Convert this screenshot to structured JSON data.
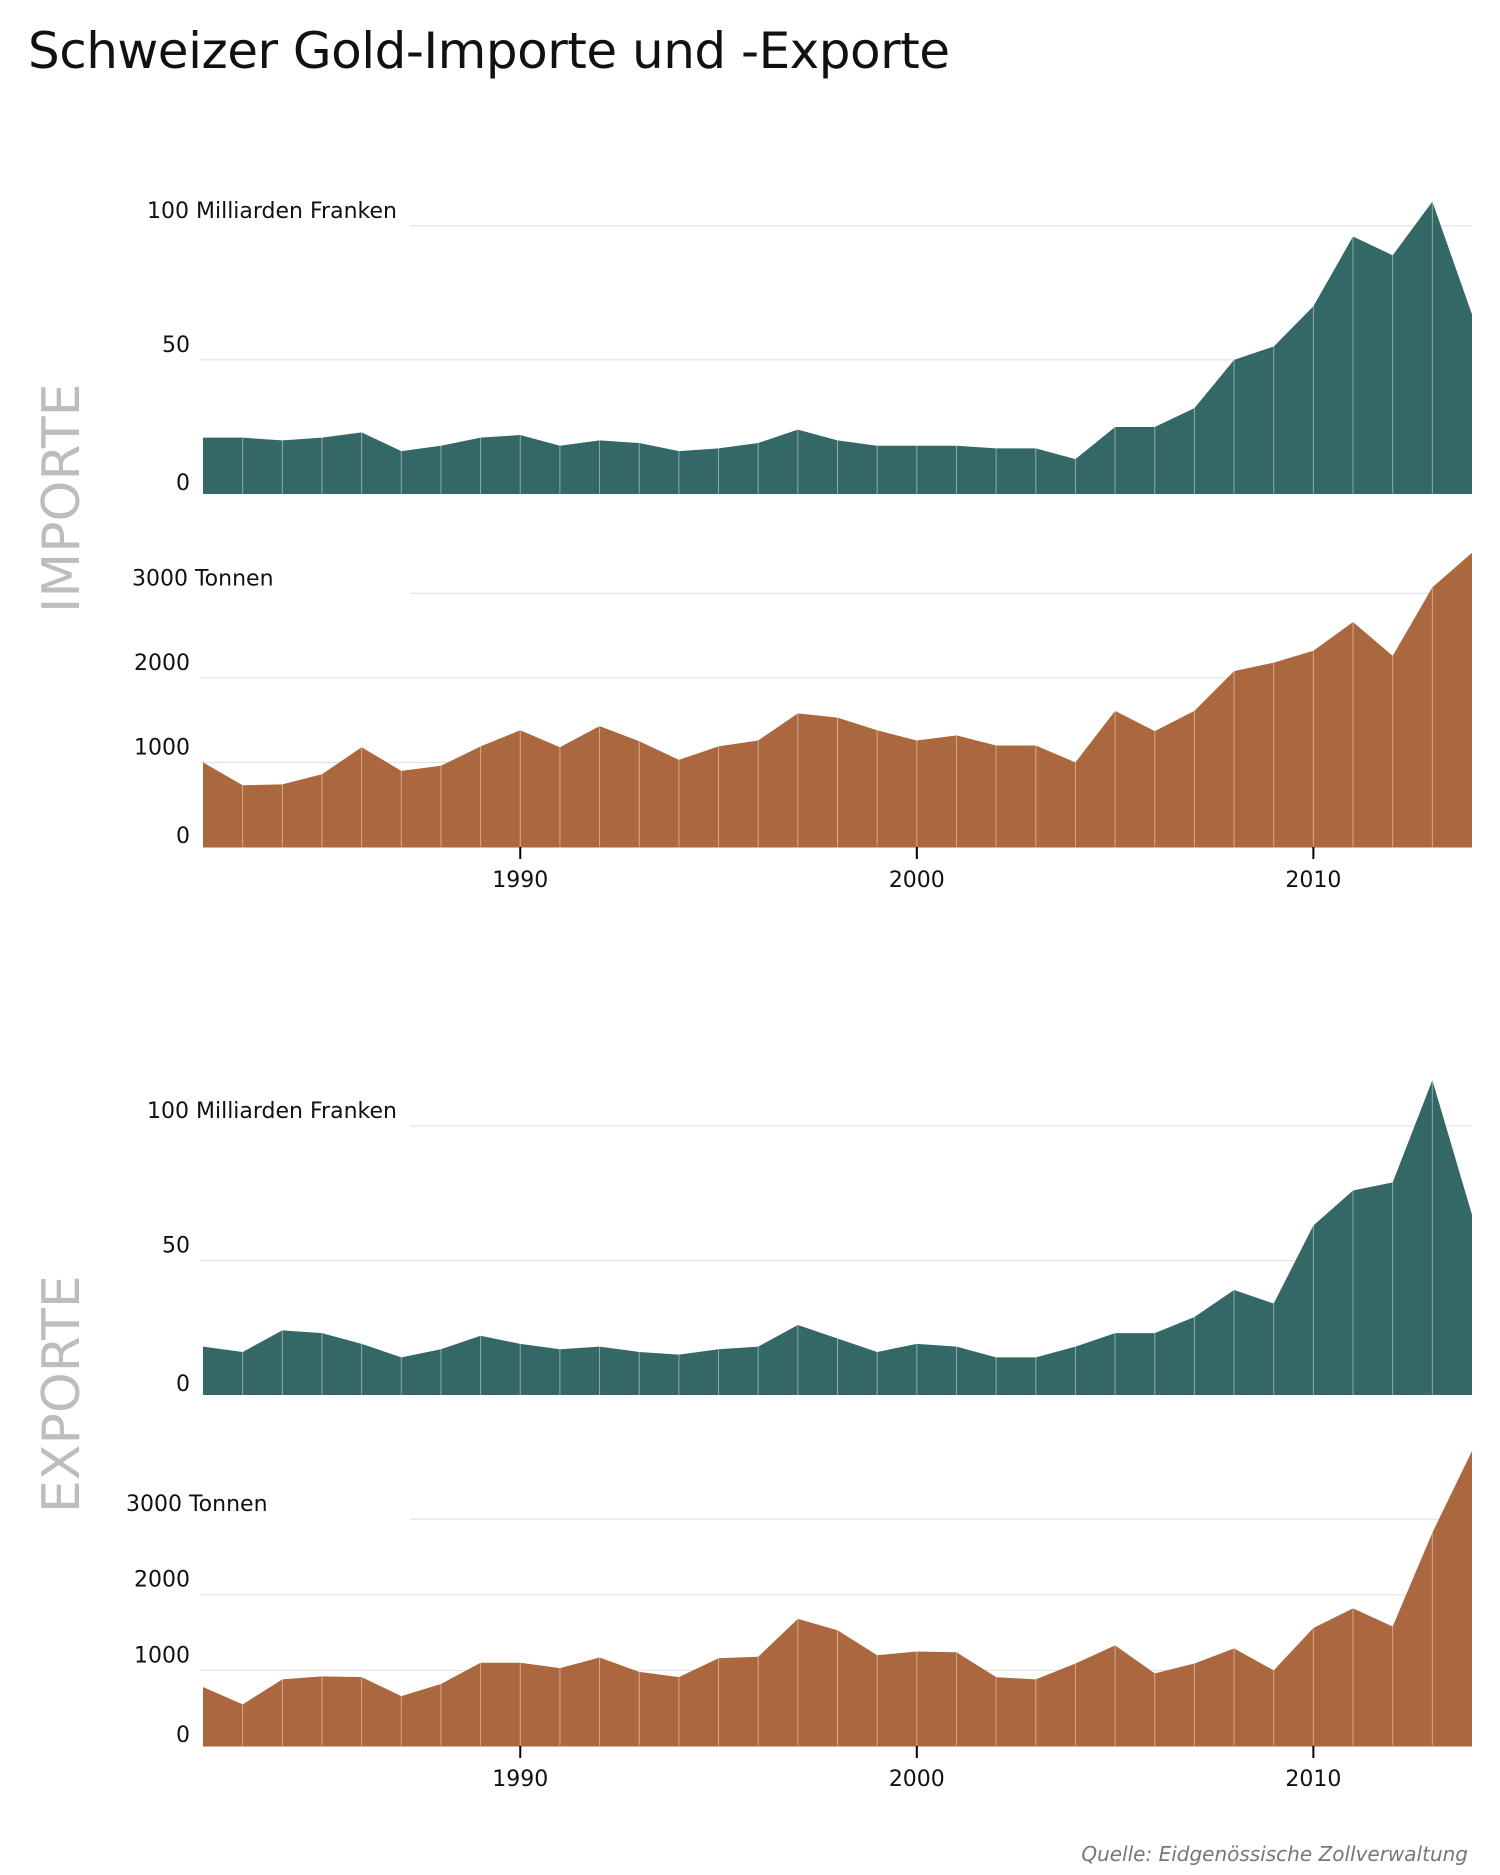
{
  "title": "Schweizer Gold-Importe und -Exporte",
  "source": "Quelle: Eidgenössische Zollverwaltung",
  "sections": [
    {
      "label": "IMPORTE"
    },
    {
      "label": "EXPORTE"
    }
  ],
  "colors": {
    "value": "#336866",
    "weight": "#ab673d",
    "grid": "#dddddd",
    "side_label": "#bdbdbd"
  },
  "chart_data": [
    {
      "type": "area",
      "section": "IMPORTE",
      "ylabel_top": "100 Milliarden Franken",
      "ylim": [
        0,
        110
      ],
      "ticks": [
        0,
        50,
        100
      ],
      "tick_labels": [
        "0",
        "50",
        "100 Milliarden Franken"
      ],
      "x": [
        1982,
        1983,
        1984,
        1985,
        1986,
        1987,
        1988,
        1989,
        1990,
        1991,
        1992,
        1993,
        1994,
        1995,
        1996,
        1997,
        1998,
        1999,
        2000,
        2001,
        2002,
        2003,
        2004,
        2005,
        2006,
        2007,
        2008,
        2009,
        2010,
        2011,
        2012,
        2013,
        2014
      ],
      "values": [
        21,
        21,
        20,
        21,
        23,
        16,
        18,
        21,
        22,
        18,
        20,
        19,
        16,
        17,
        19,
        24,
        20,
        18,
        18,
        18,
        17,
        17,
        13,
        25,
        25,
        32,
        50,
        55,
        70,
        96,
        89,
        109,
        67
      ],
      "color": "#336866"
    },
    {
      "type": "area",
      "section": "IMPORTE",
      "ylabel_top": "3000 Tonnen",
      "ylim": [
        0,
        3500
      ],
      "ticks": [
        0,
        1000,
        2000,
        3000
      ],
      "tick_labels": [
        "0",
        "1000",
        "2000",
        "3000 Tonnen"
      ],
      "x": [
        1982,
        1983,
        1984,
        1985,
        1986,
        1987,
        1988,
        1989,
        1990,
        1991,
        1992,
        1993,
        1994,
        1995,
        1996,
        1997,
        1998,
        1999,
        2000,
        2001,
        2002,
        2003,
        2004,
        2005,
        2006,
        2007,
        2008,
        2009,
        2010,
        2011,
        2012,
        2013,
        2014
      ],
      "values": [
        1000,
        730,
        740,
        860,
        1180,
        900,
        960,
        1190,
        1380,
        1180,
        1430,
        1250,
        1030,
        1190,
        1260,
        1580,
        1530,
        1380,
        1260,
        1320,
        1200,
        1200,
        1000,
        1610,
        1370,
        1610,
        2080,
        2180,
        2320,
        2660,
        2260,
        3070,
        3480
      ],
      "xticks": [
        1990,
        2000,
        2010
      ],
      "xtick_labels": [
        "1990",
        "2000",
        "2010"
      ],
      "color": "#ab673d"
    },
    {
      "type": "area",
      "section": "EXPORTE",
      "ylabel_top": "100 Milliarden Franken",
      "ylim": [
        0,
        110
      ],
      "ticks": [
        0,
        50,
        100
      ],
      "tick_labels": [
        "0",
        "50",
        "100 Milliarden Franken"
      ],
      "x": [
        1982,
        1983,
        1984,
        1985,
        1986,
        1987,
        1988,
        1989,
        1990,
        1991,
        1992,
        1993,
        1994,
        1995,
        1996,
        1997,
        1998,
        1999,
        2000,
        2001,
        2002,
        2003,
        2004,
        2005,
        2006,
        2007,
        2008,
        2009,
        2010,
        2011,
        2012,
        2013,
        2014
      ],
      "values": [
        18,
        16,
        24,
        23,
        19,
        14,
        17,
        22,
        19,
        17,
        18,
        16,
        15,
        17,
        18,
        26,
        21,
        16,
        19,
        18,
        14,
        14,
        18,
        23,
        23,
        29,
        39,
        34,
        63,
        76,
        79,
        117,
        67
      ],
      "color": "#336866"
    },
    {
      "type": "area",
      "section": "EXPORTE",
      "ylabel_top": "3000 Tonnen",
      "ylim": [
        0,
        3900
      ],
      "ticks": [
        0,
        1000,
        2000,
        3000
      ],
      "tick_labels": [
        "0",
        "1000",
        "2000",
        "3000 Tonnen"
      ],
      "x": [
        1982,
        1983,
        1984,
        1985,
        1986,
        1987,
        1988,
        1989,
        1990,
        1991,
        1992,
        1993,
        1994,
        1995,
        1996,
        1997,
        1998,
        1999,
        2000,
        2001,
        2002,
        2003,
        2004,
        2005,
        2006,
        2007,
        2008,
        2009,
        2010,
        2011,
        2012,
        2013,
        2014
      ],
      "values": [
        780,
        550,
        880,
        920,
        910,
        660,
        820,
        1100,
        1100,
        1030,
        1170,
        980,
        910,
        1160,
        1180,
        1680,
        1530,
        1200,
        1250,
        1240,
        910,
        880,
        1090,
        1330,
        960,
        1090,
        1290,
        1000,
        1560,
        1820,
        1580,
        2820,
        3900
      ],
      "xticks": [
        1990,
        2000,
        2010
      ],
      "xtick_labels": [
        "1990",
        "2000",
        "2010"
      ],
      "color": "#ab673d"
    }
  ]
}
